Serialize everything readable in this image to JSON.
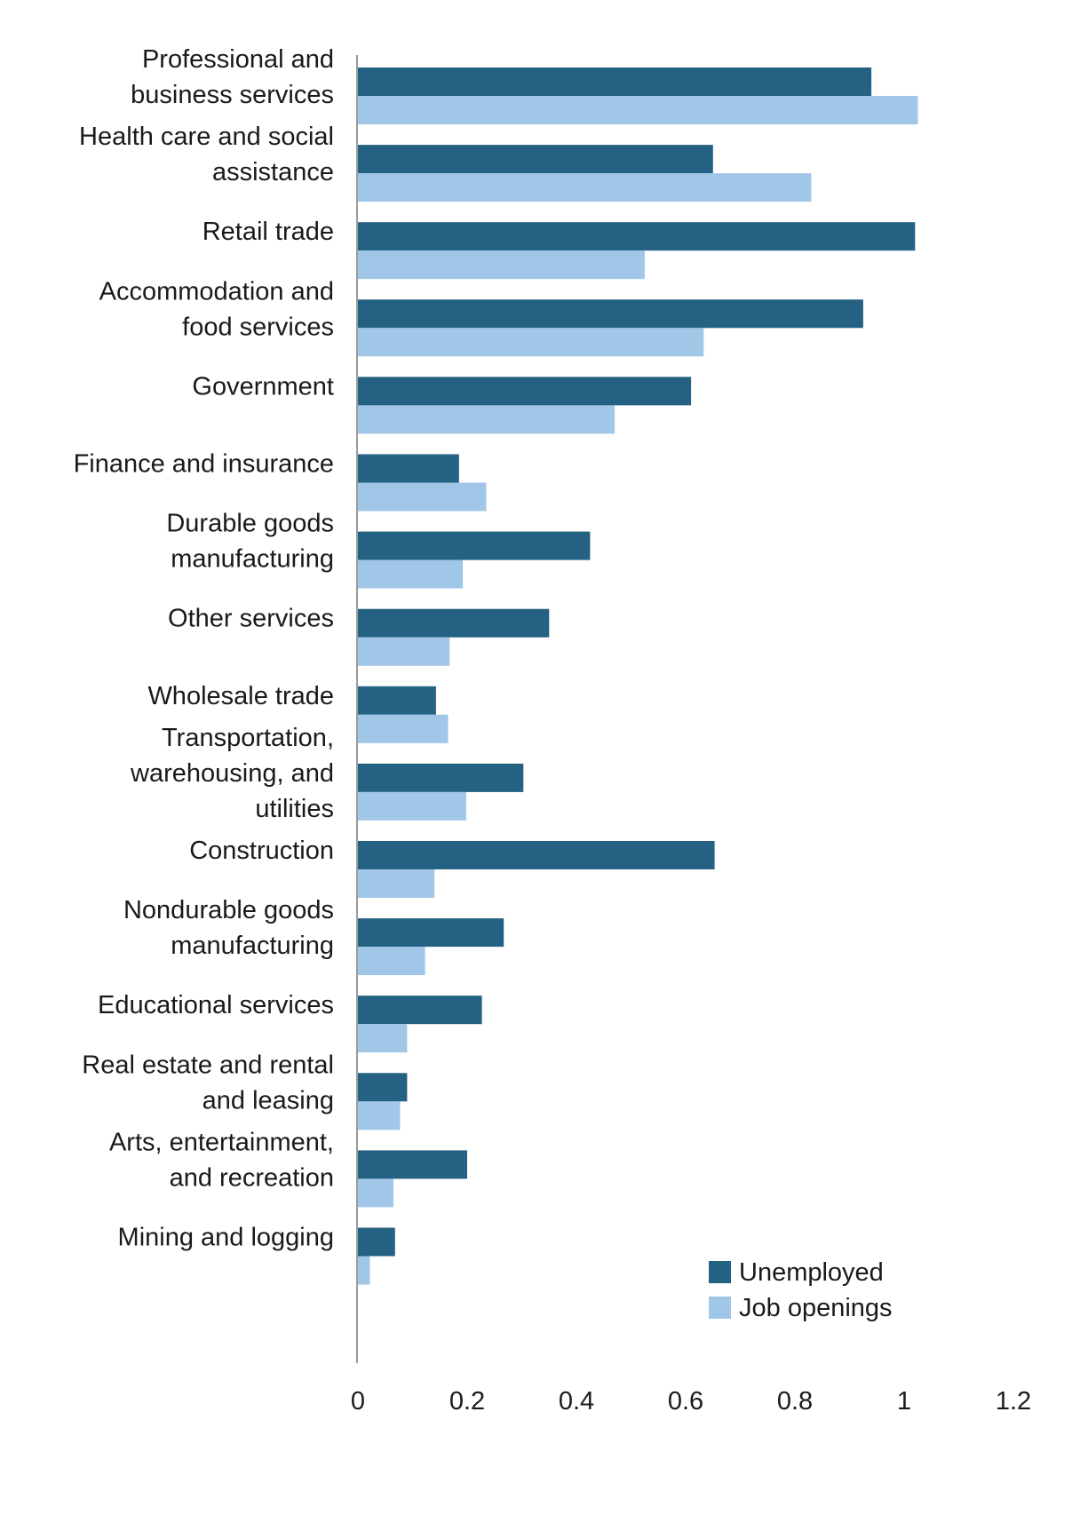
{
  "chart_data": {
    "type": "bar",
    "orientation": "horizontal",
    "title": "",
    "xlabel": "",
    "ylabel": "",
    "xlim": [
      0,
      1.2
    ],
    "x_ticks": [
      "0",
      "0.2",
      "0.4",
      "0.6",
      "0.8",
      "1",
      "1.2"
    ],
    "grid": false,
    "legend_position": "bottom-right",
    "categories": [
      "Professional and business services",
      "Health care and social assistance",
      "Retail trade",
      "Accommodation and food services",
      "Government",
      "Finance and insurance",
      "Durable goods manufacturing",
      "Other services",
      "Wholesale trade",
      "Transportation, warehousing, and utilities",
      "Construction",
      "Nondurable goods manufacturing",
      "Educational services",
      "Real estate and rental and leasing",
      "Arts, entertainment, and recreation",
      "Mining and logging"
    ],
    "category_lines": [
      [
        "Professional and",
        "business services"
      ],
      [
        "Health care and social",
        "assistance"
      ],
      [
        "Retail trade"
      ],
      [
        "Accommodation and",
        "food services"
      ],
      [
        "Government"
      ],
      [
        "Finance and insurance"
      ],
      [
        "Durable goods",
        "manufacturing"
      ],
      [
        "Other services"
      ],
      [
        "Wholesale trade"
      ],
      [
        "Transportation,",
        "warehousing, and",
        "utilities"
      ],
      [
        "Construction"
      ],
      [
        "Nondurable goods",
        "manufacturing"
      ],
      [
        "Educational services"
      ],
      [
        "Real estate and rental",
        "and leasing"
      ],
      [
        "Arts, entertainment,",
        "and recreation"
      ],
      [
        "Mining and logging"
      ]
    ],
    "series": [
      {
        "name": "Unemployed",
        "color": "#246182",
        "values": [
          0.94,
          0.65,
          1.02,
          0.925,
          0.61,
          0.185,
          0.425,
          0.35,
          0.143,
          0.303,
          0.653,
          0.267,
          0.227,
          0.09,
          0.2,
          0.068
        ]
      },
      {
        "name": "Job openings",
        "color": "#a0c6e8",
        "values": [
          1.025,
          0.83,
          0.525,
          0.633,
          0.47,
          0.235,
          0.192,
          0.168,
          0.165,
          0.198,
          0.14,
          0.123,
          0.09,
          0.077,
          0.065,
          0.022
        ]
      }
    ]
  }
}
